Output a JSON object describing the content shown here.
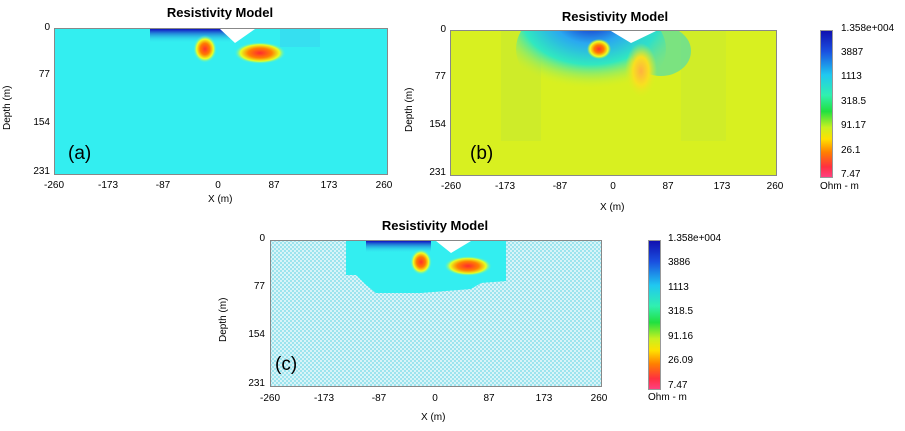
{
  "chart_data": [
    {
      "type": "heatmap",
      "panel_label": "(a)",
      "title": "Resistivity Model",
      "xlabel": "X (m)",
      "ylabel": "Depth (m)",
      "xlim": [
        -260,
        260
      ],
      "ylim": [
        231,
        0
      ],
      "xticks": [
        "-260",
        "-173",
        "-87",
        "0",
        "87",
        "173",
        "260"
      ],
      "yticks": [
        "0",
        "77",
        "154",
        "231"
      ],
      "background_ohm_m": 1113,
      "anomalies": [
        {
          "shape": "resistive-strip",
          "x_range": [
            -100,
            -25
          ],
          "depth_range": [
            0,
            12
          ],
          "value_ohm_m": 13580
        },
        {
          "shape": "conductive-blob",
          "x": -20,
          "depth": 25,
          "value_ohm_m": 7.47
        },
        {
          "shape": "conductive-blob",
          "x": 45,
          "depth": 33,
          "value_ohm_m": 26.1
        }
      ]
    },
    {
      "type": "heatmap",
      "panel_label": "(b)",
      "title": "Resistivity Model",
      "xlabel": "X (m)",
      "ylabel": "Depth (m)",
      "xlim": [
        -260,
        260
      ],
      "ylim": [
        231,
        0
      ],
      "xticks": [
        "-260",
        "-173",
        "-87",
        "0",
        "87",
        "173",
        "260"
      ],
      "yticks": [
        "0",
        "77",
        "154",
        "231"
      ],
      "background_ohm_m": 91.17,
      "anomalies": [
        {
          "shape": "resistive-strip",
          "x_range": [
            -110,
            -30
          ],
          "depth_range": [
            0,
            25
          ],
          "value_ohm_m": 13580
        },
        {
          "shape": "conductive-blob",
          "x": -25,
          "depth": 25,
          "value_ohm_m": 7.47
        },
        {
          "shape": "conductive-blob",
          "x": 45,
          "depth": 50,
          "value_ohm_m": 26.1
        }
      ],
      "colorbar": {
        "labels": [
          "1.358e+004",
          "3887",
          "1113",
          "318.5",
          "91.17",
          "26.1",
          "7.47"
        ],
        "unit": "Ohm - m"
      }
    },
    {
      "type": "heatmap",
      "panel_label": "(c)",
      "title": "Resistivity Model",
      "xlabel": "X (m)",
      "ylabel": "Depth (m)",
      "xlim": [
        -260,
        260
      ],
      "ylim": [
        231,
        0
      ],
      "xticks": [
        "-260",
        "-173",
        "-87",
        "0",
        "87",
        "173",
        "260"
      ],
      "yticks": [
        "0",
        "77",
        "154",
        "231"
      ],
      "background": "hatched",
      "anomalies": [
        {
          "shape": "resistive-strip",
          "x_range": [
            -90,
            -30
          ],
          "depth_range": [
            0,
            12
          ],
          "value_ohm_m": 13580
        },
        {
          "shape": "conductive-blob",
          "x": -20,
          "depth": 25,
          "value_ohm_m": 7.47
        },
        {
          "shape": "conductive-blob",
          "x": 45,
          "depth": 33,
          "value_ohm_m": 26.09
        }
      ],
      "colorbar": {
        "labels": [
          "1.358e+004",
          "3886",
          "1113",
          "318.5",
          "91.16",
          "26.09",
          "7.47"
        ],
        "unit": "Ohm - m"
      }
    }
  ]
}
